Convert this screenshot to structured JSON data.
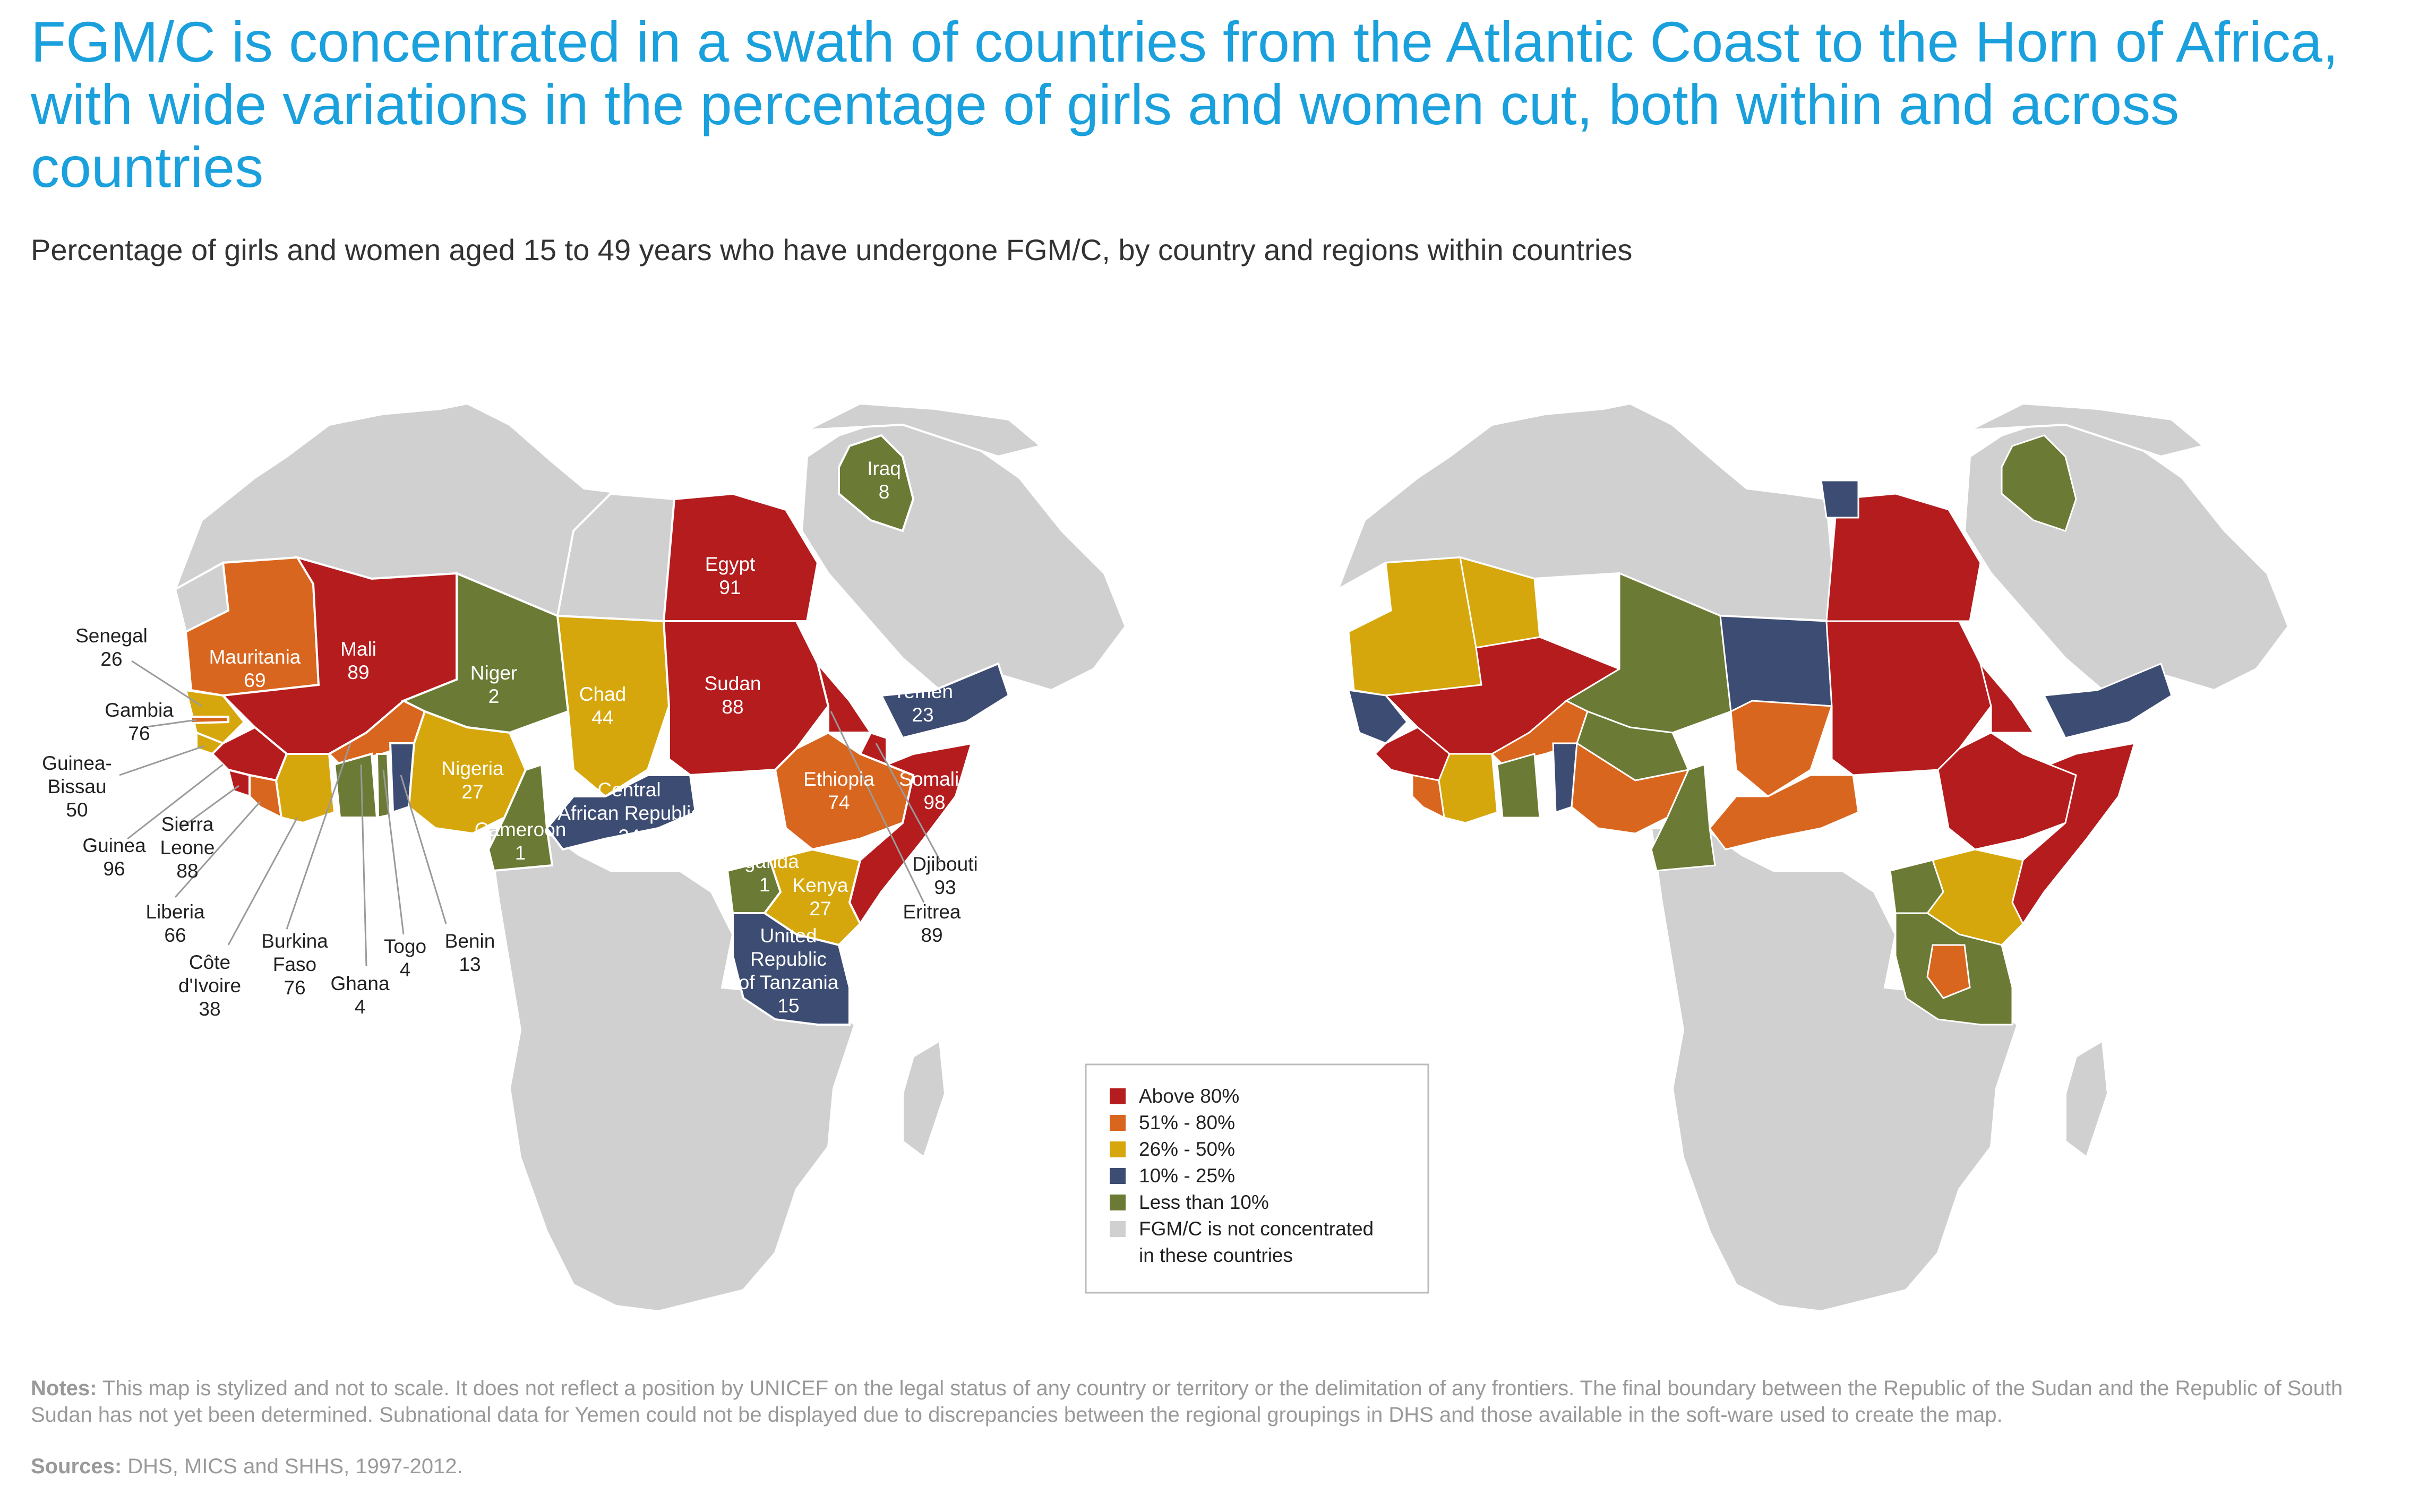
{
  "title": "FGM/C is concentrated in a swath of countries from the Atlantic Coast to the Horn of Africa, with wide variations in the percentage of girls and women cut, both within and across countries",
  "subtitle": "Percentage of girls and women aged 15 to 49 years who have undergone FGM/C, by country and regions within countries",
  "colors": {
    "above80": "#b51c1e",
    "51to80": "#d9661f",
    "26to50": "#d6a70c",
    "10to25": "#3d4c72",
    "below10": "#6b7a34",
    "not_concentrated": "#d0d0d0"
  },
  "countries": [
    {
      "name": "Senegal",
      "value": "26"
    },
    {
      "name": "Gambia",
      "value": "76"
    },
    {
      "name": "Guinea-Bissau",
      "name_lines": [
        "Guinea-",
        "Bissau"
      ],
      "value": "50"
    },
    {
      "name": "Guinea",
      "value": "96"
    },
    {
      "name": "Sierra Leone",
      "name_lines": [
        "Sierra",
        "Leone"
      ],
      "value": "88"
    },
    {
      "name": "Liberia",
      "value": "66"
    },
    {
      "name": "Côte d'Ivoire",
      "name_lines": [
        "Côte",
        "d'Ivoire"
      ],
      "value": "38"
    },
    {
      "name": "Burkina Faso",
      "name_lines": [
        "Burkina",
        "Faso"
      ],
      "value": "76"
    },
    {
      "name": "Ghana",
      "value": "4"
    },
    {
      "name": "Togo",
      "value": "4"
    },
    {
      "name": "Benin",
      "value": "13"
    },
    {
      "name": "Mauritania",
      "value": "69"
    },
    {
      "name": "Mali",
      "value": "89"
    },
    {
      "name": "Niger",
      "value": "2"
    },
    {
      "name": "Nigeria",
      "value": "27"
    },
    {
      "name": "Chad",
      "value": "44"
    },
    {
      "name": "Cameroon",
      "value": "1"
    },
    {
      "name": "Central African Republic",
      "name_lines": [
        "Central",
        "African Republic"
      ],
      "value": "24"
    },
    {
      "name": "Egypt",
      "value": "91"
    },
    {
      "name": "Sudan",
      "value": "88"
    },
    {
      "name": "Iraq",
      "value": "8"
    },
    {
      "name": "Yemen",
      "value": "23"
    },
    {
      "name": "Ethiopia",
      "value": "74"
    },
    {
      "name": "Somalia",
      "value": "98"
    },
    {
      "name": "Djibouti",
      "value": "93"
    },
    {
      "name": "Eritrea",
      "value": "89"
    },
    {
      "name": "Uganda",
      "value": "1"
    },
    {
      "name": "Kenya",
      "value": "27"
    },
    {
      "name": "United Republic of Tanzania",
      "name_lines": [
        "United",
        "Republic",
        "of Tanzania"
      ],
      "value": "15"
    }
  ],
  "legend": {
    "items": [
      {
        "label": "Above 80%",
        "color": "#b51c1e"
      },
      {
        "label": "51% - 80%",
        "color": "#d9661f"
      },
      {
        "label": "26% - 50%",
        "color": "#d6a70c"
      },
      {
        "label": "10% - 25%",
        "color": "#3d4c72"
      },
      {
        "label": "Less than 10%",
        "color": "#6b7a34"
      },
      {
        "label": "FGM/C is not concentrated",
        "label2": "in these countries",
        "color": "#d0d0d0"
      }
    ]
  },
  "notes": {
    "heading": "Notes:",
    "text": " This map is stylized and not to scale. It does not reflect a position by UNICEF on the legal status of any country or territory or the delimitation of any frontiers. The final boundary between the Republic of the Sudan and the Republic of South Sudan has not yet been determined. Subnational data for Yemen could not be displayed due to discrepancies between the regional groupings in DHS and those available in the soft-ware used to create the map."
  },
  "sources": {
    "heading": "Sources:",
    "text": " DHS, MICS and SHHS, 1997-2012."
  }
}
